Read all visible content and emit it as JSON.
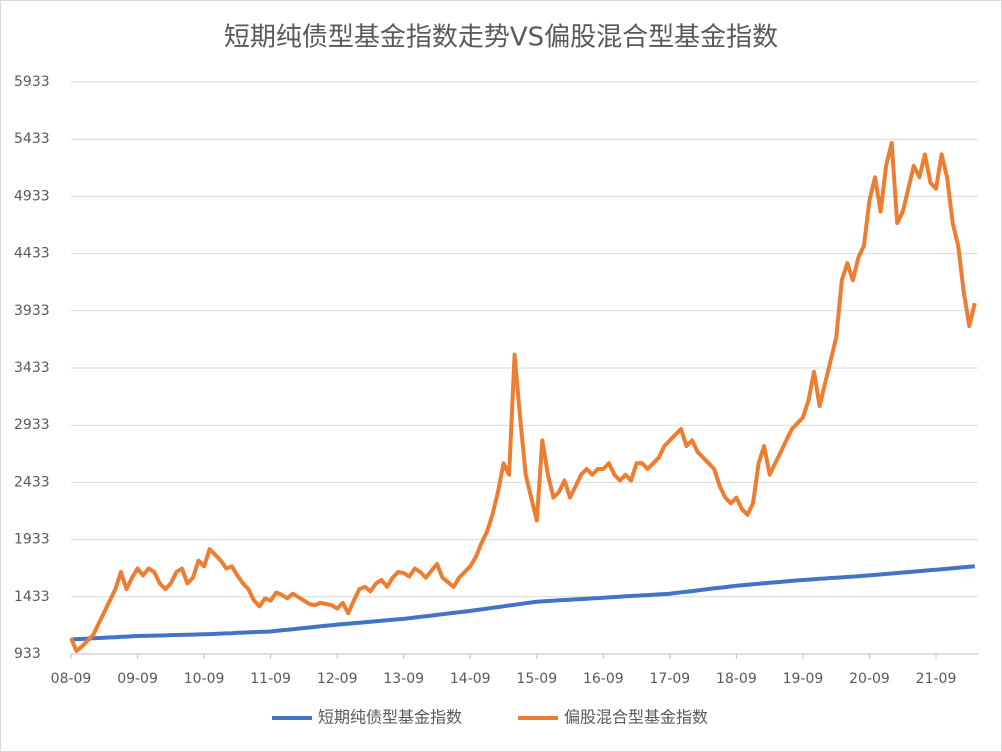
{
  "chart_data": {
    "type": "line",
    "title": "短期纯债型基金指数走势VS偏股混合型基金指数",
    "categories": [
      "08-09",
      null,
      null,
      null,
      null,
      null,
      null,
      null,
      null,
      null,
      null,
      null,
      "09-09",
      null,
      null,
      null,
      null,
      null,
      null,
      null,
      null,
      null,
      null,
      null,
      "10-09",
      null,
      null,
      null,
      null,
      null,
      null,
      null,
      null,
      null,
      null,
      null,
      "11-09",
      null,
      null,
      null,
      null,
      null,
      null,
      null,
      null,
      null,
      null,
      null,
      "12-09",
      null,
      null,
      null,
      null,
      null,
      null,
      null,
      null,
      null,
      null,
      null,
      "13-09",
      null,
      null,
      null,
      null,
      null,
      null,
      null,
      null,
      null,
      null,
      null,
      "14-09",
      null,
      null,
      null,
      null,
      null,
      null,
      null,
      null,
      null,
      null,
      null,
      "15-09",
      null,
      null,
      null,
      null,
      null,
      null,
      null,
      null,
      null,
      null,
      null,
      "16-09",
      null,
      null,
      null,
      null,
      null,
      null,
      null,
      null,
      null,
      null,
      null,
      "17-09",
      null,
      null,
      null,
      null,
      null,
      null,
      null,
      null,
      null,
      null,
      null,
      "18-09",
      null,
      null,
      null,
      null,
      null,
      null,
      null,
      null,
      null,
      null,
      null,
      "19-09",
      null,
      null,
      null,
      null,
      null,
      null,
      null,
      null,
      null,
      null,
      null,
      "20-09",
      null,
      null,
      null,
      null,
      null,
      null,
      null,
      null,
      null,
      null,
      null,
      "21-09",
      null,
      null,
      null,
      null,
      null,
      null,
      null
    ],
    "series": [
      {
        "name": "短期纯债型基金指数",
        "color": "#4472c4",
        "values": [
          1060,
          1063,
          1065,
          1068,
          1070,
          1073,
          1075,
          1078,
          1080,
          1083,
          1085,
          1088,
          1090,
          1091,
          1093,
          1094,
          1095,
          1096,
          1098,
          1099,
          1100,
          1101,
          1103,
          1104,
          1105,
          1107,
          1109,
          1111,
          1113,
          1115,
          1118,
          1120,
          1122,
          1124,
          1126,
          1128,
          1130,
          1135,
          1140,
          1145,
          1150,
          1155,
          1160,
          1165,
          1170,
          1175,
          1180,
          1185,
          1190,
          1194,
          1198,
          1203,
          1207,
          1211,
          1215,
          1219,
          1223,
          1228,
          1232,
          1236,
          1240,
          1246,
          1252,
          1258,
          1263,
          1269,
          1275,
          1281,
          1287,
          1292,
          1298,
          1304,
          1310,
          1317,
          1323,
          1330,
          1337,
          1343,
          1350,
          1357,
          1363,
          1370,
          1377,
          1383,
          1390,
          1393,
          1396,
          1399,
          1402,
          1405,
          1408,
          1410,
          1413,
          1416,
          1419,
          1422,
          1425,
          1428,
          1431,
          1434,
          1437,
          1440,
          1443,
          1445,
          1448,
          1451,
          1454,
          1457,
          1460,
          1466,
          1472,
          1478,
          1483,
          1489,
          1495,
          1501,
          1507,
          1512,
          1518,
          1524,
          1530,
          1534,
          1538,
          1543,
          1547,
          1551,
          1555,
          1559,
          1563,
          1568,
          1572,
          1576,
          1580,
          1583,
          1587,
          1590,
          1593,
          1597,
          1600,
          1603,
          1607,
          1610,
          1613,
          1617,
          1620,
          1624,
          1628,
          1633,
          1637,
          1641,
          1645,
          1649,
          1653,
          1658,
          1662,
          1666,
          1670,
          1674,
          1678,
          1683,
          1687,
          1691,
          1696,
          1700
        ]
      },
      {
        "name": "偏股混合型基金指数",
        "color": "#ed7d31",
        "values": [
          1070,
          960,
          1000,
          1050,
          1100,
          1200,
          1300,
          1400,
          1500,
          1650,
          1500,
          1600,
          1680,
          1620,
          1680,
          1650,
          1550,
          1500,
          1550,
          1650,
          1680,
          1550,
          1600,
          1750,
          1700,
          1850,
          1800,
          1750,
          1680,
          1700,
          1620,
          1550,
          1500,
          1400,
          1350,
          1420,
          1400,
          1470,
          1450,
          1420,
          1460,
          1430,
          1400,
          1370,
          1360,
          1380,
          1370,
          1360,
          1330,
          1380,
          1290,
          1400,
          1500,
          1520,
          1480,
          1550,
          1580,
          1520,
          1600,
          1650,
          1640,
          1610,
          1680,
          1650,
          1600,
          1660,
          1720,
          1600,
          1560,
          1520,
          1600,
          1650,
          1700,
          1780,
          1900,
          2000,
          2150,
          2350,
          2600,
          2500,
          3550,
          3000,
          2500,
          2300,
          2100,
          2800,
          2500,
          2300,
          2350,
          2450,
          2300,
          2400,
          2500,
          2550,
          2500,
          2550,
          2550,
          2600,
          2500,
          2450,
          2500,
          2450,
          2600,
          2600,
          2550,
          2600,
          2650,
          2750,
          2800,
          2850,
          2900,
          2750,
          2800,
          2700,
          2650,
          2600,
          2550,
          2400,
          2300,
          2250,
          2300,
          2200,
          2150,
          2250,
          2600,
          2750,
          2500,
          2600,
          2700,
          2800,
          2900,
          2950,
          3000,
          3150,
          3400,
          3100,
          3300,
          3500,
          3700,
          4200,
          4350,
          4200,
          4400,
          4500,
          4900,
          5100,
          4800,
          5200,
          5400,
          4700,
          4800,
          5000,
          5200,
          5100,
          5300,
          5050,
          5000,
          5300,
          5100,
          4700,
          4500,
          4100,
          3800,
          4000
        ]
      }
    ],
    "ylim": [
      933,
      5933
    ],
    "yticks": [
      933,
      1433,
      1933,
      2433,
      2933,
      3433,
      3933,
      4433,
      4933,
      5433,
      5933
    ],
    "grid": true,
    "legend": "bottom"
  }
}
